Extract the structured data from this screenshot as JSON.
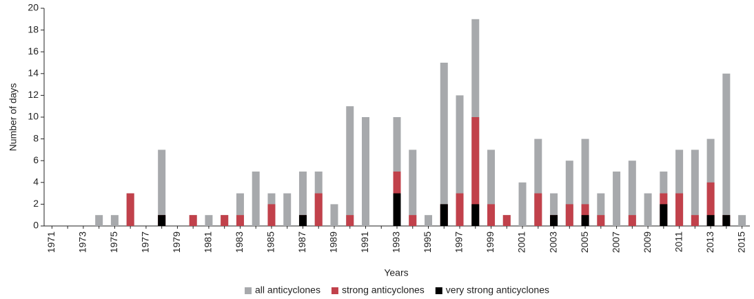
{
  "chart_data": {
    "type": "bar",
    "mode": "overlay",
    "x_label": "Years",
    "y_label": "Number of days",
    "categories": [
      "1971",
      null,
      "1973",
      null,
      "1975",
      null,
      "1977",
      null,
      "1979",
      null,
      "1981",
      null,
      "1983",
      null,
      "1985",
      null,
      "1987",
      null,
      "1989",
      null,
      "1991",
      null,
      "1993",
      null,
      "1995",
      null,
      "1997",
      null,
      "1999",
      null,
      "2001",
      null,
      "2003",
      null,
      "2005",
      null,
      "2007",
      null,
      "2009",
      null,
      "2011",
      null,
      "2013",
      null,
      "2015"
    ],
    "series": [
      {
        "name": "all anticyclones",
        "color": "#a7a9ac",
        "values": [
          0,
          0,
          0,
          1,
          1,
          3,
          0,
          7,
          0,
          1,
          1,
          1,
          3,
          5,
          3,
          3,
          5,
          5,
          2,
          11,
          10,
          0,
          10,
          7,
          1,
          15,
          12,
          19,
          7,
          1,
          4,
          8,
          3,
          6,
          8,
          3,
          5,
          6,
          3,
          5,
          7,
          7,
          8,
          14,
          1
        ]
      },
      {
        "name": "strong anticyclones",
        "color": "#c1414b",
        "values": [
          0,
          0,
          0,
          0,
          0,
          3,
          0,
          1,
          0,
          1,
          0,
          1,
          1,
          0,
          2,
          0,
          1,
          3,
          0,
          1,
          0,
          0,
          5,
          1,
          0,
          2,
          3,
          10,
          2,
          1,
          0,
          3,
          1,
          2,
          2,
          1,
          0,
          1,
          0,
          3,
          3,
          1,
          4,
          1,
          0
        ]
      },
      {
        "name": "very strong anticyclones",
        "color": "#000000",
        "values": [
          0,
          0,
          0,
          0,
          0,
          0,
          0,
          1,
          0,
          0,
          0,
          0,
          0,
          0,
          0,
          0,
          1,
          0,
          0,
          0,
          0,
          0,
          3,
          0,
          0,
          2,
          0,
          2,
          0,
          0,
          0,
          0,
          1,
          0,
          1,
          0,
          0,
          0,
          0,
          2,
          0,
          0,
          1,
          1,
          0
        ]
      }
    ],
    "ylim": [
      0,
      20
    ],
    "yticks": [
      0,
      2,
      4,
      6,
      8,
      10,
      12,
      14,
      16,
      18,
      20
    ],
    "legend": "bottom"
  }
}
